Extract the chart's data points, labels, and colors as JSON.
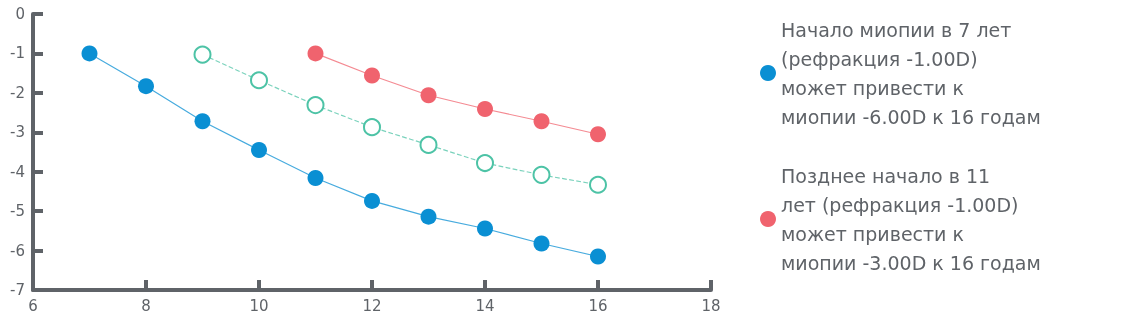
{
  "chart_data": {
    "type": "line",
    "xlim": [
      6,
      18
    ],
    "xticks": [
      6,
      8,
      10,
      12,
      14,
      16,
      18
    ],
    "ylim": [
      -7,
      0
    ],
    "yticks": [
      -7,
      -6,
      -5,
      -4,
      -3,
      -2,
      -1,
      0
    ],
    "grid": false,
    "legend": "right",
    "marker": "circle",
    "series": [
      {
        "name": "Начало миопии в 7 лет (рефракция -1.00D) может привести к миопии -6.00D к 16 годам",
        "color": "#0a8fd3",
        "x": [
          7,
          8,
          9,
          10,
          11,
          12,
          13,
          14,
          15,
          16
        ],
        "values": [
          -1.0,
          -1.83,
          -2.72,
          -3.45,
          -4.16,
          -4.74,
          -5.14,
          -5.44,
          -5.82,
          -6.15
        ]
      },
      {
        "color": "#4dc3a6",
        "line_style": "dashed",
        "x": [
          9,
          10,
          11,
          12,
          13,
          14,
          15,
          16
        ],
        "values": [
          -1.03,
          -1.68,
          -2.31,
          -2.87,
          -3.32,
          -3.78,
          -4.08,
          -4.33
        ]
      },
      {
        "name": "Позднее начало в 11 лет (рефракция -1.00D) может привести к миопии -3.00D к 16 годам",
        "color": "#f0636e",
        "x": [
          11,
          12,
          13,
          14,
          15,
          16
        ],
        "values": [
          -1.0,
          -1.56,
          -2.06,
          -2.41,
          -2.72,
          -3.05
        ]
      }
    ]
  }
}
